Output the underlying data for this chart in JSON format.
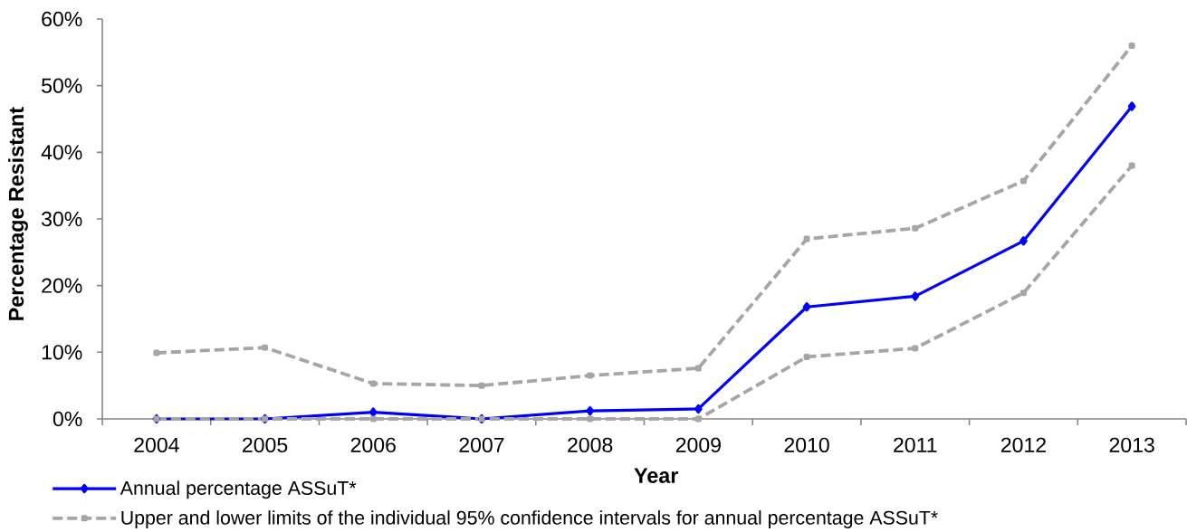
{
  "chart_data": {
    "type": "line",
    "xlabel": "Year",
    "ylabel": "Percentage Resistant",
    "categories": [
      "2004",
      "2005",
      "2006",
      "2007",
      "2008",
      "2009",
      "2010",
      "2011",
      "2012",
      "2013"
    ],
    "series": [
      {
        "name": "Annual percentage ASSuT*",
        "color": "#0000ff",
        "marker": "diamond",
        "line_style": "solid",
        "values": [
          0,
          0,
          1.0,
          0,
          1.2,
          1.5,
          16.8,
          18.4,
          26.7,
          46.9
        ]
      },
      {
        "name": "Upper and lower limits of the individual 95% confidence intervals for annual percentage ASSuT*",
        "color": "#a6a6a6",
        "marker": "square",
        "line_style": "dashed",
        "values": [
          9.9,
          10.7,
          5.3,
          5.0,
          6.5,
          7.6,
          27.0,
          28.6,
          35.7,
          56.0
        ]
      },
      {
        "color": "#a6a6a6",
        "marker": "square",
        "line_style": "dashed",
        "values": [
          0,
          0,
          0,
          0,
          0,
          0,
          9.3,
          10.6,
          18.9,
          38.0
        ]
      }
    ],
    "ylim": [
      0,
      60
    ],
    "yticks": [
      {
        "value": 0,
        "label": "0%"
      },
      {
        "value": 10,
        "label": "10%"
      },
      {
        "value": 20,
        "label": "20%"
      },
      {
        "value": 30,
        "label": "30%"
      },
      {
        "value": 40,
        "label": "40%"
      },
      {
        "value": 50,
        "label": "50%"
      },
      {
        "value": 60,
        "label": "60%"
      }
    ],
    "legend": "bottom left"
  }
}
